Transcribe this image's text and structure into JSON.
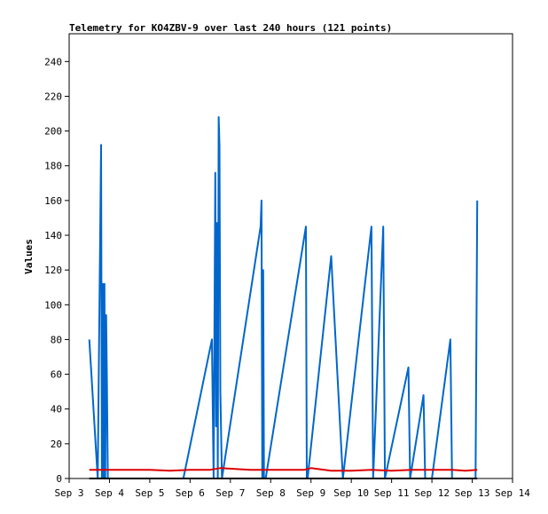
{
  "chart_data": {
    "type": "line",
    "title": "Telemetry for KO4ZBV-9 over last 240 hours (121 points)",
    "xlabel": "",
    "ylabel": "Values",
    "x_ticks": [
      "Sep 3",
      "Sep 4",
      "Sep 5",
      "Sep 6",
      "Sep 7",
      "Sep 8",
      "Sep 9",
      "Sep 10",
      "Sep 11",
      "Sep 12",
      "Sep 13",
      "Sep 14"
    ],
    "y_ticks": [
      0,
      20,
      40,
      60,
      80,
      100,
      120,
      140,
      160,
      180,
      200,
      220,
      240
    ],
    "xlim": [
      "2023-09-03 00:00",
      "2023-09-14 00:00"
    ],
    "ylim": [
      0,
      256
    ],
    "grid": false,
    "colors": {
      "series_blue": "#0066cc",
      "series_red": "#dd0000",
      "series_black": "#000000",
      "axis": "#000000"
    },
    "series": [
      {
        "color": "#0066cc",
        "x": [
          "2023-09-03 12:00",
          "2023-09-03 17:00",
          "2023-09-03 19:00",
          "2023-09-03 19:30",
          "2023-09-03 20:00",
          "2023-09-03 20:30",
          "2023-09-03 21:00",
          "2023-09-03 21:30",
          "2023-09-03 22:00",
          "2023-09-03 22:30",
          "2023-09-03 23:00",
          "2023-09-04 00:00",
          "2023-09-05 20:00",
          "2023-09-06 13:00",
          "2023-09-06 14:00",
          "2023-09-06 15:00",
          "2023-09-06 15:30",
          "2023-09-06 16:00",
          "2023-09-06 16:30",
          "2023-09-06 17:00",
          "2023-09-06 17:30",
          "2023-09-06 18:00",
          "2023-09-06 19:00",
          "2023-09-07 18:00",
          "2023-09-07 18:30",
          "2023-09-07 19:00",
          "2023-09-07 19:30",
          "2023-09-07 20:00",
          "2023-09-07 21:00",
          "2023-09-08 21:00",
          "2023-09-08 21:30",
          "2023-09-08 22:00",
          "2023-09-09 12:00",
          "2023-09-09 13:00",
          "2023-09-09 19:00",
          "2023-09-10 12:00",
          "2023-09-10 13:00",
          "2023-09-10 19:00",
          "2023-09-10 20:00",
          "2023-09-11 10:00",
          "2023-09-11 11:00",
          "2023-09-11 19:00",
          "2023-09-11 20:00",
          "2023-09-12 00:00",
          "2023-09-12 11:00",
          "2023-09-12 12:00",
          "2023-09-13 02:00",
          "2023-09-13 03:00"
        ],
        "values": [
          80,
          0,
          192,
          0,
          112,
          0,
          112,
          0,
          94,
          55,
          0,
          0,
          0,
          80,
          0,
          176,
          30,
          147,
          0,
          208,
          192,
          50,
          0,
          145,
          160,
          0,
          120,
          0,
          0,
          145,
          0,
          0,
          128,
          110,
          0,
          145,
          0,
          145,
          0,
          64,
          0,
          48,
          0,
          0,
          80,
          0,
          0,
          160
        ]
      },
      {
        "color": "#dd0000",
        "x": [
          "2023-09-03 12:00",
          "2023-09-04 12:00",
          "2023-09-05 00:00",
          "2023-09-05 12:00",
          "2023-09-06 00:00",
          "2023-09-06 12:00",
          "2023-09-06 18:00",
          "2023-09-07 12:00",
          "2023-09-08 00:00",
          "2023-09-08 12:00",
          "2023-09-08 20:00",
          "2023-09-09 00:00",
          "2023-09-09 12:00",
          "2023-09-10 00:00",
          "2023-09-10 12:00",
          "2023-09-11 00:00",
          "2023-09-11 12:00",
          "2023-09-12 00:00",
          "2023-09-12 12:00",
          "2023-09-12 20:00",
          "2023-09-13 03:00"
        ],
        "values": [
          5,
          5,
          5,
          4.5,
          5,
          5,
          6,
          5,
          5,
          5,
          5,
          6,
          4.5,
          4.5,
          5,
          4.5,
          5,
          5,
          5,
          4.5,
          5
        ]
      },
      {
        "color": "#000000",
        "x": [
          "2023-09-03 12:00",
          "2023-09-13 03:00"
        ],
        "values": [
          0,
          0
        ]
      }
    ]
  }
}
